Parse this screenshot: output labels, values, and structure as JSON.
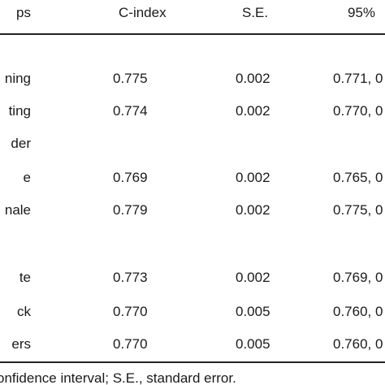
{
  "table": {
    "headers": [
      "ps",
      "C-index",
      "S.E.",
      "95%"
    ],
    "rows": [
      {
        "label": "ning",
        "cindex": "0.775",
        "se": "0.002",
        "ci": "0.771, 0"
      },
      {
        "label": "ting",
        "cindex": "0.774",
        "se": "0.002",
        "ci": "0.770, 0"
      },
      {
        "section": "der"
      },
      {
        "label": "e",
        "cindex": "0.769",
        "se": "0.002",
        "ci": "0.765, 0"
      },
      {
        "label": "nale",
        "cindex": "0.779",
        "se": "0.002",
        "ci": "0.775, 0"
      },
      {
        "label": "te",
        "cindex": "0.773",
        "se": "0.002",
        "ci": "0.769, 0"
      },
      {
        "label": "ck",
        "cindex": "0.770",
        "se": "0.005",
        "ci": "0.760, 0"
      },
      {
        "label": "ers",
        "cindex": "0.770",
        "se": "0.005",
        "ci": "0.760, 0"
      }
    ]
  },
  "footnote": "onfidence interval; S.E., standard error."
}
